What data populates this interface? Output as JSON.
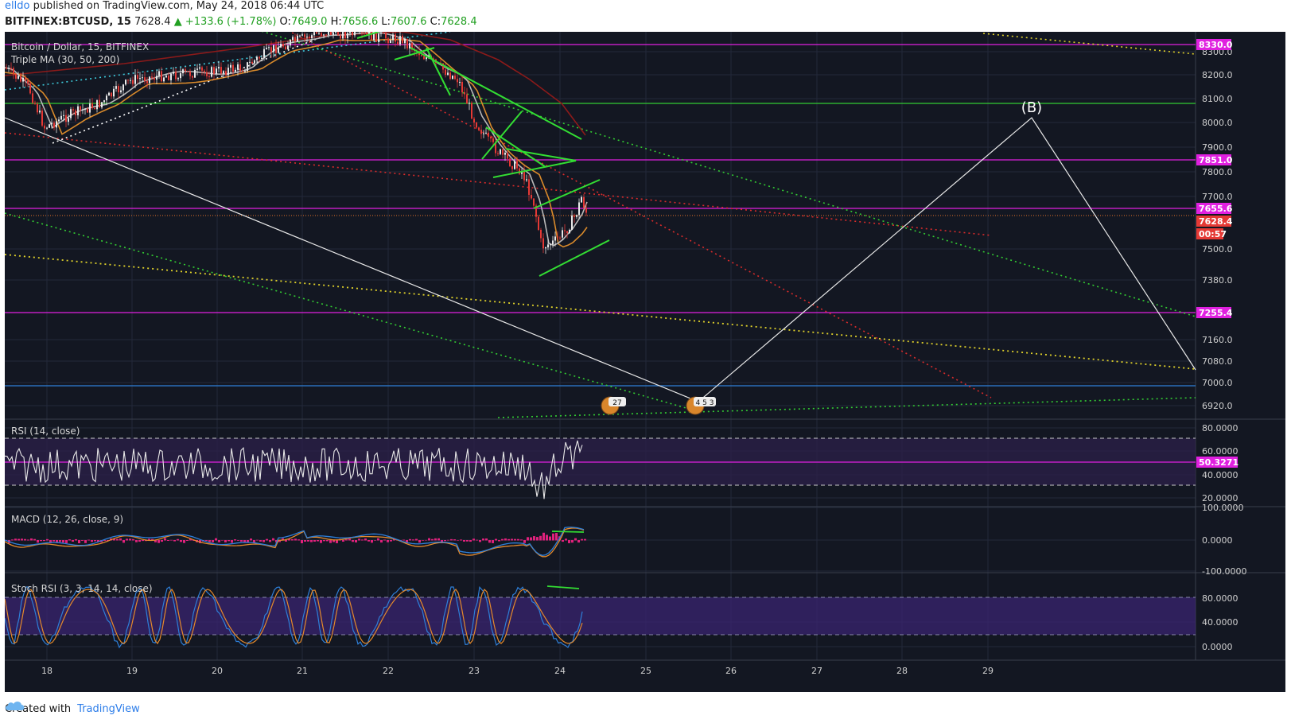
{
  "header": {
    "author": "elldo",
    "published": " published on TradingView.com, May 24, 2018 06:44 UTC",
    "symbol": "BITFINEX:BTCUSD, 15",
    "price": "7628.4",
    "change": "▲ +133.6 (+1.78%)",
    "o_label": "O:",
    "o_value": "7649.0",
    "h_label": "H:",
    "h_value": "7656.6",
    "l_label": "L:",
    "l_value": "7607.6",
    "c_label": "C:",
    "c_value": "7628.4"
  },
  "main_panel": {
    "title": "Bitcoin / Dollar, 15, BITFINEX",
    "indicator": "Triple MA (30, 50, 200)",
    "wave_label": "(B)",
    "y_ticks": [
      "8300.0",
      "8200.0",
      "8100.0",
      "8000.0",
      "7900.0",
      "7800.0",
      "7700.0",
      "7500.0",
      "7380.0",
      "7160.0",
      "7080.0",
      "7000.0",
      "6920.0"
    ],
    "price_tags": [
      {
        "text": "8330.0",
        "color": "#e020e0"
      },
      {
        "text": "7851.0",
        "color": "#e020e0"
      },
      {
        "text": "7655.6",
        "color": "#e020e0"
      },
      {
        "text": "7628.4",
        "color": "#e53935"
      },
      {
        "text": "00:57",
        "color": "#e53935"
      },
      {
        "text": "7255.4",
        "color": "#e020e0"
      }
    ],
    "event_badges": [
      "27",
      "4 5 3"
    ]
  },
  "rsi_panel": {
    "title": "RSI (14, close)",
    "y_ticks": [
      "80.0000",
      "60.0000",
      "40.0000",
      "20.0000"
    ],
    "tag": "50.3271"
  },
  "macd_panel": {
    "title": "MACD (12, 26, close, 9)",
    "y_ticks": [
      "100.0000",
      "0.0000",
      "-100.0000"
    ]
  },
  "stoch_panel": {
    "title": "Stoch RSI (3, 3, 14, 14, close)",
    "y_ticks": [
      "80.0000",
      "40.0000",
      "0.0000"
    ]
  },
  "x_axis": {
    "labels": [
      "18",
      "19",
      "20",
      "21",
      "22",
      "23",
      "24",
      "25",
      "26",
      "27",
      "28",
      "29"
    ]
  },
  "footer": {
    "created_with": "Created with",
    "brand": "TradingView"
  },
  "colors": {
    "background": "#131722",
    "grid": "#2a2e39",
    "magenta": "#e020e0",
    "green": "#33dd33",
    "red_dotted": "#d92b2b",
    "yellow_dotted": "#e0d22a",
    "ma_fast": "#b0b0b0",
    "ma_mid": "#d98a2b",
    "ma_slow": "#8b1a1a"
  }
}
